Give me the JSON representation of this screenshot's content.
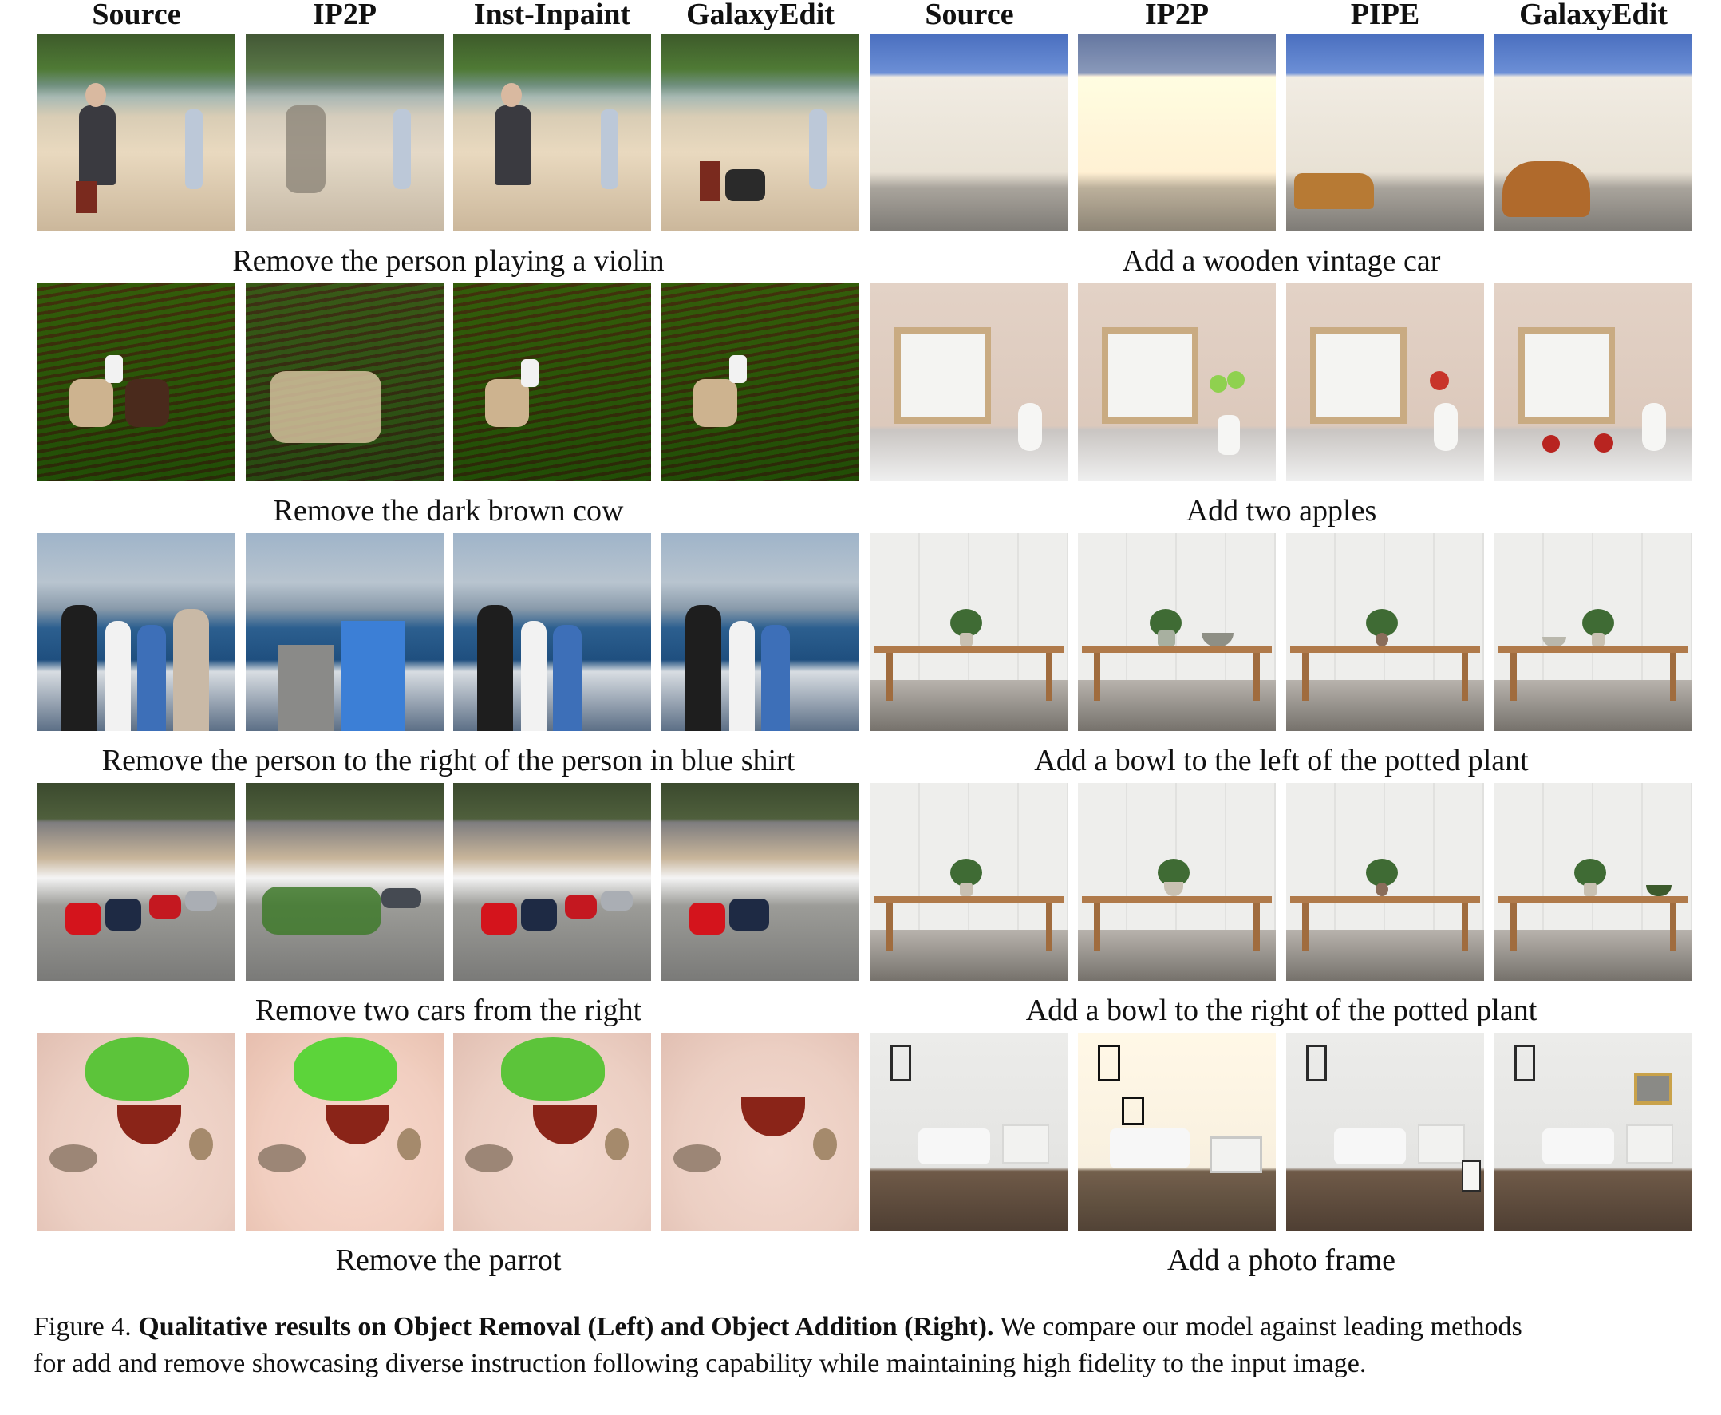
{
  "headers": [
    "Source",
    "IP2P",
    "Inst-Inpaint",
    "GalaxyEdit",
    "Source",
    "IP2P",
    "PIPE",
    "GalaxyEdit"
  ],
  "left_captions": [
    "Remove the person playing a violin",
    "Remove the dark brown cow",
    "Remove the person to the right of the person in blue shirt",
    "Remove two cars from the right",
    "Remove the parrot"
  ],
  "right_captions": [
    "Add a wooden vintage car",
    "Add two apples",
    "Add a bowl to the left of the potted plant",
    "Add a bowl to the right of the potted plant",
    "Add a photo frame"
  ],
  "figure_caption": {
    "label": "Figure 4.",
    "title": "Qualitative results on Object Removal (Left) and Object Addition (Right).",
    "body_line1": "We compare our model against leading methods",
    "body_line2": "for add and remove showcasing diverse instruction following capability while maintaining high fidelity to the input image."
  }
}
